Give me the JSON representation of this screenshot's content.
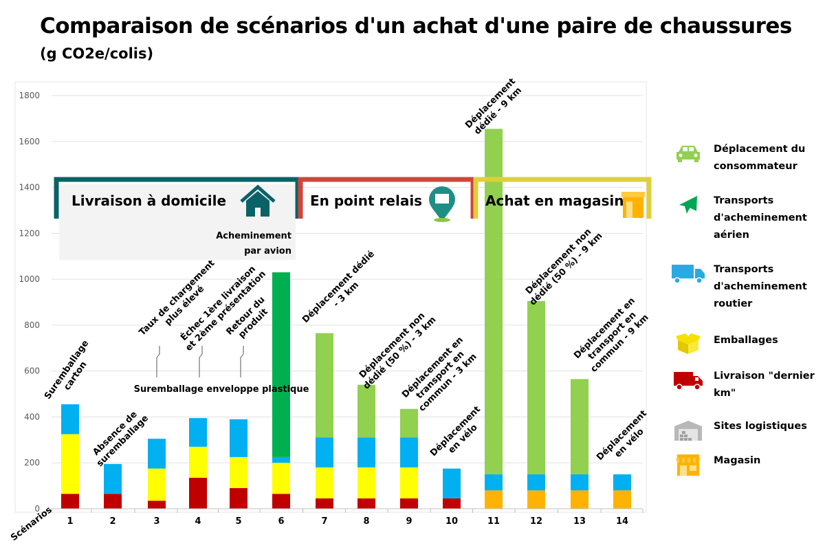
{
  "title": "Comparaison de scénarios d'un achat d'une paire de chaussures",
  "subtitle": "(g CO2e/colis)",
  "chart_data": {
    "type": "bar",
    "stacked": true,
    "categories": [
      "1",
      "2",
      "3",
      "4",
      "5",
      "6",
      "7",
      "8",
      "9",
      "10",
      "11",
      "12",
      "13",
      "14"
    ],
    "xlabel": "Scénarios",
    "ylabel": "",
    "ylim": [
      0,
      1800
    ],
    "yticks": [
      0,
      200,
      400,
      600,
      800,
      1000,
      1200,
      1400,
      1600,
      1800
    ],
    "grid": true,
    "series": [
      {
        "name": "Livraison \"dernier km\"",
        "color": "#c00000",
        "values": [
          65,
          65,
          35,
          135,
          90,
          65,
          45,
          45,
          45,
          45,
          0,
          0,
          0,
          0
        ]
      },
      {
        "name": "Magasin",
        "color": "#ffb300",
        "values": [
          0,
          0,
          0,
          0,
          0,
          0,
          0,
          0,
          0,
          0,
          80,
          80,
          80,
          80
        ]
      },
      {
        "name": "Emballages",
        "color": "#ffff00",
        "values": [
          260,
          0,
          140,
          135,
          135,
          135,
          135,
          135,
          135,
          0,
          0,
          0,
          0,
          0
        ]
      },
      {
        "name": "Transports d'acheminement routier",
        "color": "#00b0f0",
        "values": [
          130,
          130,
          130,
          125,
          165,
          25,
          130,
          130,
          130,
          130,
          70,
          70,
          70,
          70
        ]
      },
      {
        "name": "Transports d'acheminement aérien",
        "color": "#00b050",
        "values": [
          0,
          0,
          0,
          0,
          0,
          805,
          0,
          0,
          0,
          0,
          0,
          0,
          0,
          0
        ]
      },
      {
        "name": "Déplacement du consommateur",
        "color": "#92d050",
        "values": [
          0,
          0,
          0,
          0,
          0,
          0,
          455,
          230,
          125,
          0,
          1505,
          755,
          415,
          0
        ]
      }
    ],
    "annotations": [
      {
        "label": "Suremballage carton",
        "scenario": "1"
      },
      {
        "label": "Absence de suremballage",
        "scenario": "2"
      },
      {
        "label": "Taux de chargement plus élevé",
        "scenario": "3"
      },
      {
        "label": "Échec 1ère livraison et 2ème présentation",
        "scenario": "4"
      },
      {
        "label": "Retour du produit",
        "scenario": "5"
      },
      {
        "label": "Acheminement par avion",
        "scenario": "6"
      },
      {
        "label": "Suremballage enveloppe plastique",
        "scenario": "3-6"
      },
      {
        "label": "Déplacement dédié - 3 km",
        "scenario": "7"
      },
      {
        "label": "Déplacement non dédié (50 %) - 3 km",
        "scenario": "8"
      },
      {
        "label": "Déplacement en transport en commun - 3 km",
        "scenario": "9"
      },
      {
        "label": "Déplacement en vélo",
        "scenario": "10"
      },
      {
        "label": "Déplacement dédié - 9 km",
        "scenario": "11"
      },
      {
        "label": "Déplacement non dédié (50 %) - 9 km",
        "scenario": "12"
      },
      {
        "label": "Déplacement en transport en commun - 9 km",
        "scenario": "13"
      },
      {
        "label": "Déplacement en vélo",
        "scenario": "14"
      }
    ],
    "groups": [
      {
        "label": "Livraison à domicile",
        "color": "#0a6267",
        "scenarios": "1-6",
        "icon": "house-icon"
      },
      {
        "label": "En point relais",
        "color": "#d0453a",
        "scenarios": "7-10",
        "icon": "relay-pin-icon"
      },
      {
        "label": "Achat en magasin",
        "color": "#ddd03a",
        "scenarios": "11-14",
        "icon": "shop-icon"
      }
    ]
  },
  "legend": [
    {
      "label": "Déplacement du consommateur",
      "icon": "car-icon",
      "color": "#92d050"
    },
    {
      "label": "Transports d'acheminement aérien",
      "icon": "plane-icon",
      "color": "#00a651"
    },
    {
      "label": "Transports d'acheminement routier",
      "icon": "truck-icon",
      "color": "#29abe2"
    },
    {
      "label": "Emballages",
      "icon": "box-icon",
      "color": "#f5e000"
    },
    {
      "label": "Livraison \"dernier km\"",
      "icon": "van-icon",
      "color": "#c00000"
    },
    {
      "label": "Sites logistiques",
      "icon": "warehouse-icon",
      "color": "#b0b0b0"
    },
    {
      "label": "Magasin",
      "icon": "store-icon",
      "color": "#ffb300"
    }
  ]
}
